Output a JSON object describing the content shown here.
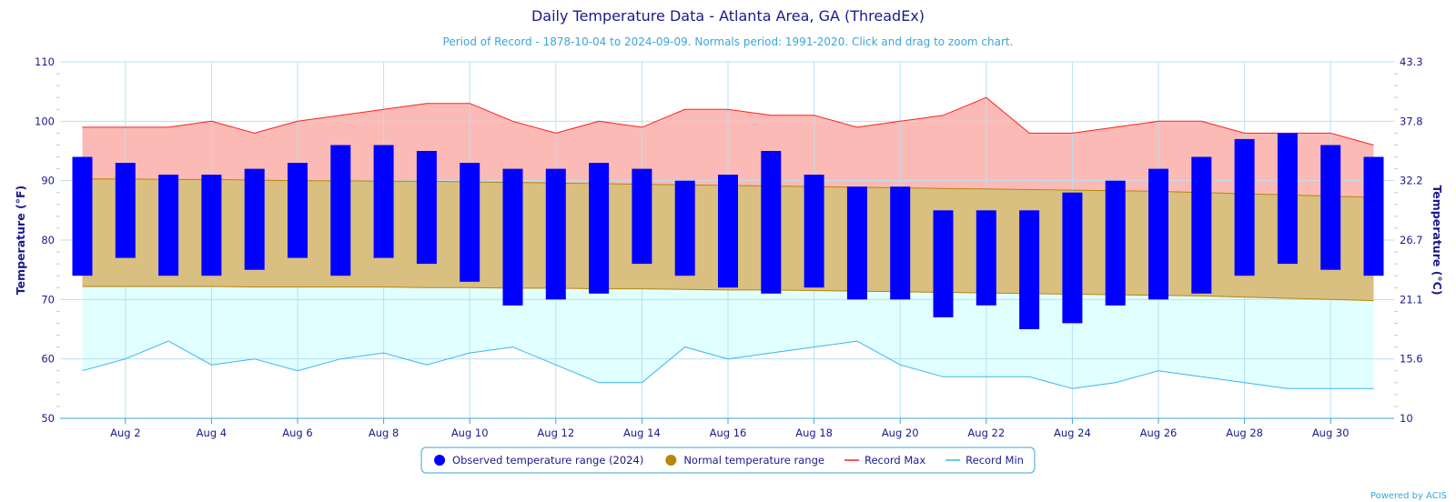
{
  "chart_data": {
    "type": "bar",
    "title": "Daily Temperature Data - Atlanta Area, GA (ThreadEx)",
    "subtitle": "Period of Record - 1878-10-04 to 2024-09-09. Normals period: 1991-2020. Click and drag to zoom chart.",
    "ylabel_left": "Temperature (°F)",
    "ylabel_right": "Temperature (°C)",
    "ylim": [
      50,
      110
    ],
    "yticks_left": [
      "50",
      "60",
      "70",
      "80",
      "90",
      "100",
      "110"
    ],
    "yticks_right": [
      "10",
      "15.6",
      "21.1",
      "26.7",
      "32.2",
      "37.8",
      "43.3"
    ],
    "x_days": [
      1,
      2,
      3,
      4,
      5,
      6,
      7,
      8,
      9,
      10,
      11,
      12,
      13,
      14,
      15,
      16,
      17,
      18,
      19,
      20,
      21,
      22,
      23,
      24,
      25,
      26,
      27,
      28,
      29,
      30,
      31
    ],
    "x_tick_labels": [
      {
        "day": 2,
        "label": "Aug 2"
      },
      {
        "day": 4,
        "label": "Aug 4"
      },
      {
        "day": 6,
        "label": "Aug 6"
      },
      {
        "day": 8,
        "label": "Aug 8"
      },
      {
        "day": 10,
        "label": "Aug 10"
      },
      {
        "day": 12,
        "label": "Aug 12"
      },
      {
        "day": 14,
        "label": "Aug 14"
      },
      {
        "day": 16,
        "label": "Aug 16"
      },
      {
        "day": 18,
        "label": "Aug 18"
      },
      {
        "day": 20,
        "label": "Aug 20"
      },
      {
        "day": 22,
        "label": "Aug 22"
      },
      {
        "day": 24,
        "label": "Aug 24"
      },
      {
        "day": 26,
        "label": "Aug 26"
      },
      {
        "day": 28,
        "label": "Aug 28"
      },
      {
        "day": 30,
        "label": "Aug 30"
      }
    ],
    "series": [
      {
        "name": "Observed temperature range (2024)",
        "kind": "range-bar",
        "color": "#0000ff",
        "high": [
          94,
          93,
          91,
          91,
          92,
          93,
          96,
          96,
          95,
          93,
          92,
          92,
          93,
          92,
          90,
          91,
          95,
          91,
          89,
          89,
          85,
          85,
          85,
          88,
          90,
          92,
          94,
          97,
          98,
          96,
          94
        ],
        "low": [
          74,
          77,
          74,
          74,
          75,
          77,
          74,
          77,
          76,
          73,
          69,
          70,
          71,
          76,
          74,
          72,
          71,
          72,
          70,
          70,
          67,
          69,
          65,
          66,
          69,
          70,
          71,
          74,
          76,
          75,
          74
        ]
      },
      {
        "name": "Normal temperature range",
        "kind": "area-range",
        "color": "#b8860b",
        "fill": "#d9bf80",
        "high": [
          90.3,
          90.3,
          90.2,
          90.2,
          90.1,
          90.0,
          90.0,
          89.9,
          89.9,
          89.8,
          89.7,
          89.6,
          89.5,
          89.4,
          89.3,
          89.2,
          89.1,
          89.0,
          88.9,
          88.8,
          88.7,
          88.6,
          88.5,
          88.4,
          88.3,
          88.2,
          88.0,
          87.8,
          87.6,
          87.4,
          87.2
        ],
        "low": [
          72.2,
          72.2,
          72.2,
          72.2,
          72.1,
          72.1,
          72.1,
          72.1,
          72.0,
          72.0,
          71.9,
          71.9,
          71.8,
          71.8,
          71.7,
          71.6,
          71.6,
          71.5,
          71.4,
          71.3,
          71.2,
          71.1,
          71.0,
          70.9,
          70.8,
          70.7,
          70.6,
          70.4,
          70.2,
          70.0,
          69.8
        ]
      },
      {
        "name": "Record Max",
        "kind": "line",
        "color": "#ff2020",
        "fill": "#fbbab5",
        "values": [
          99,
          99,
          99,
          100,
          98,
          100,
          101,
          102,
          103,
          103,
          100,
          98,
          100,
          99,
          102,
          102,
          101,
          101,
          99,
          100,
          101,
          104,
          98,
          98,
          99,
          100,
          100,
          98,
          98,
          98,
          96
        ]
      },
      {
        "name": "Record Min",
        "kind": "line",
        "color": "#3ab4f2",
        "fill": "#e0fffe",
        "values": [
          58,
          60,
          63,
          59,
          60,
          58,
          60,
          61,
          59,
          61,
          62,
          59,
          56,
          56,
          62,
          60,
          61,
          62,
          63,
          59,
          57,
          57,
          57,
          55,
          56,
          58,
          57,
          56,
          55,
          55,
          55
        ]
      }
    ],
    "legend": {
      "position": "bottom-center",
      "items": [
        {
          "label": "Observed temperature range (2024)",
          "marker": "circle",
          "color": "#0000ff"
        },
        {
          "label": "Normal temperature range",
          "marker": "circle",
          "color": "#b8860b"
        },
        {
          "label": "Record Max",
          "marker": "line",
          "color": "#ff2020"
        },
        {
          "label": "Record Min",
          "marker": "line",
          "color": "#3ab4f2"
        }
      ]
    },
    "grid": true,
    "credit": "Powered by ACIS"
  }
}
